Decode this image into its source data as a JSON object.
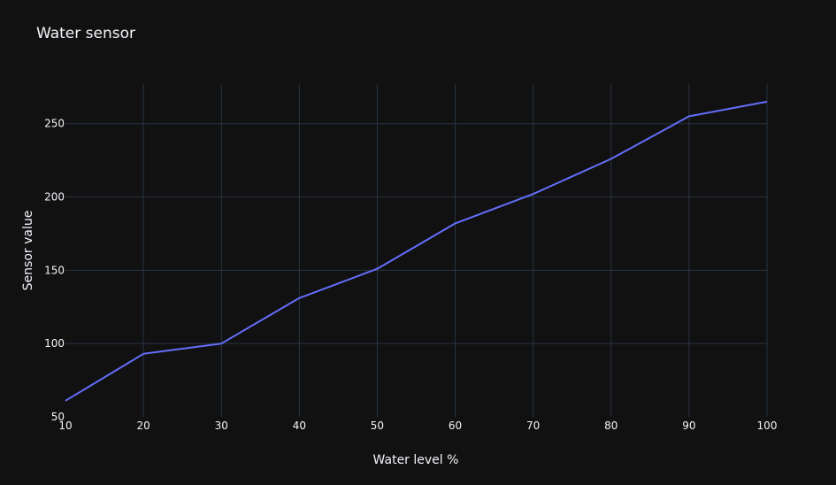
{
  "chart_data": {
    "type": "line",
    "title": "Water sensor",
    "xlabel": "Water level %",
    "ylabel": "Sensor value",
    "x": [
      10,
      20,
      30,
      40,
      50,
      60,
      70,
      80,
      90,
      100
    ],
    "series": [
      {
        "values": [
          61,
          93,
          100,
          131,
          151,
          182,
          202,
          226,
          255,
          265
        ]
      }
    ],
    "xlim": [
      10,
      100
    ],
    "ylim": [
      50,
      277
    ],
    "xticks": [
      10,
      20,
      30,
      40,
      50,
      60,
      70,
      80,
      90,
      100
    ],
    "yticks": [
      50,
      100,
      150,
      200,
      250
    ],
    "grid": true,
    "colors": {
      "background": "#111111",
      "grid": "#283442",
      "line": "#636efa",
      "text": "#f2f5fa"
    }
  }
}
